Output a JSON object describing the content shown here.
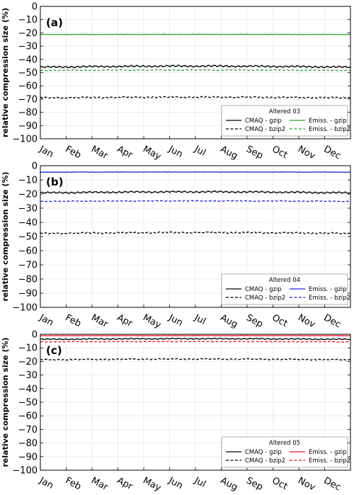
{
  "chart_data": [
    {
      "type": "line",
      "panel_label": "(a)",
      "ylabel": "relative compression size (%)",
      "ylim": [
        -100,
        0
      ],
      "yticks": [
        "0",
        "−10",
        "−20",
        "−30",
        "−40",
        "−50",
        "−60",
        "−70",
        "−80",
        "−90",
        "−100"
      ],
      "categories": [
        "Jan",
        "Feb",
        "Mar",
        "Apr",
        "May",
        "Jun",
        "Jul",
        "Aug",
        "Sep",
        "Oct",
        "Nov",
        "Dec"
      ],
      "grid": true,
      "legend": {
        "title": "Altered 03",
        "placement": "bottom-right",
        "entries": [
          {
            "label": "CMAQ - gzip",
            "color": "#000000",
            "dash": "solid"
          },
          {
            "label": "Emiss. - gzip",
            "color": "#2ca02c",
            "dash": "solid"
          },
          {
            "label": "CMAQ - bzip2",
            "color": "#000000",
            "dash": "dashed"
          },
          {
            "label": "Emiss. - bzip2",
            "color": "#2ca02c",
            "dash": "dashed"
          }
        ]
      },
      "series": [
        {
          "name": "CMAQ - gzip",
          "color": "#000000",
          "dash": "solid",
          "mean": -45.5,
          "amp": 0.8,
          "trend": 0.9
        },
        {
          "name": "CMAQ - bzip2",
          "color": "#000000",
          "dash": "dashed",
          "mean": -68.8,
          "amp": 0.6,
          "trend": 0.6
        },
        {
          "name": "Emiss. - gzip",
          "color": "#2ca02c",
          "dash": "solid",
          "mean": -21.2,
          "amp": 0.15,
          "trend": 0.1
        },
        {
          "name": "Emiss. - bzip2",
          "color": "#2ca02c",
          "dash": "dashed",
          "mean": -48.2,
          "amp": 0.35,
          "trend": 0.3
        }
      ]
    },
    {
      "type": "line",
      "panel_label": "(b)",
      "ylabel": "relative compression size (%)",
      "ylim": [
        -100,
        0
      ],
      "yticks": [
        "0",
        "−10",
        "−20",
        "−30",
        "−40",
        "−50",
        "−60",
        "−70",
        "−80",
        "−90",
        "−100"
      ],
      "categories": [
        "Jan",
        "Feb",
        "Mar",
        "Apr",
        "May",
        "Jun",
        "Jul",
        "Aug",
        "Sep",
        "Oct",
        "Nov",
        "Dec"
      ],
      "grid": true,
      "legend": {
        "title": "Altered 04",
        "placement": "bottom-right",
        "entries": [
          {
            "label": "CMAQ - gzip",
            "color": "#000000",
            "dash": "solid"
          },
          {
            "label": "Emiss. - gzip",
            "color": "#1f1fd6",
            "dash": "solid"
          },
          {
            "label": "CMAQ - bzip2",
            "color": "#000000",
            "dash": "dashed"
          },
          {
            "label": "Emiss. - bzip2",
            "color": "#1f1fd6",
            "dash": "dashed"
          }
        ]
      },
      "series": [
        {
          "name": "CMAQ - gzip",
          "color": "#000000",
          "dash": "solid",
          "mean": -18.8,
          "amp": 0.7,
          "trend": 0.8
        },
        {
          "name": "CMAQ - bzip2",
          "color": "#000000",
          "dash": "dashed",
          "mean": -47.5,
          "amp": 0.6,
          "trend": 0.7
        },
        {
          "name": "Emiss. - gzip",
          "color": "#1f1fd6",
          "dash": "solid",
          "mean": -4.5,
          "amp": 0.12,
          "trend": 0.1
        },
        {
          "name": "Emiss. - bzip2",
          "color": "#1f1fd6",
          "dash": "dashed",
          "mean": -25.0,
          "amp": 0.3,
          "trend": 0.3
        }
      ]
    },
    {
      "type": "line",
      "panel_label": "(c)",
      "ylabel": "relative compression size (%)",
      "ylim": [
        -100,
        0
      ],
      "yticks": [
        "0",
        "−10",
        "−20",
        "−30",
        "−40",
        "−50",
        "−60",
        "−70",
        "−80",
        "−90",
        "−100"
      ],
      "categories": [
        "Jan",
        "Feb",
        "Mar",
        "Apr",
        "May",
        "Jun",
        "Jul",
        "Aug",
        "Sep",
        "Oct",
        "Nov",
        "Dec"
      ],
      "grid": true,
      "legend": {
        "title": "Altered 05",
        "placement": "bottom-right",
        "entries": [
          {
            "label": "CMAQ - gzip",
            "color": "#000000",
            "dash": "solid"
          },
          {
            "label": "Emiss. - gzip",
            "color": "#e8141b",
            "dash": "solid"
          },
          {
            "label": "CMAQ - bzip2",
            "color": "#000000",
            "dash": "dashed"
          },
          {
            "label": "Emiss. - bzip2",
            "color": "#e8141b",
            "dash": "dashed"
          }
        ]
      },
      "series": [
        {
          "name": "CMAQ - gzip",
          "color": "#000000",
          "dash": "solid",
          "mean": -3.5,
          "amp": 0.5,
          "trend": 0.5
        },
        {
          "name": "CMAQ - bzip2",
          "color": "#000000",
          "dash": "dashed",
          "mean": -18.5,
          "amp": 0.5,
          "trend": 0.6
        },
        {
          "name": "Emiss. - gzip",
          "color": "#e8141b",
          "dash": "solid",
          "mean": -1.0,
          "amp": 0.1,
          "trend": 0.05
        },
        {
          "name": "Emiss. - bzip2",
          "color": "#e8141b",
          "dash": "dashed",
          "mean": -5.5,
          "amp": 0.25,
          "trend": 0.2
        }
      ]
    }
  ]
}
